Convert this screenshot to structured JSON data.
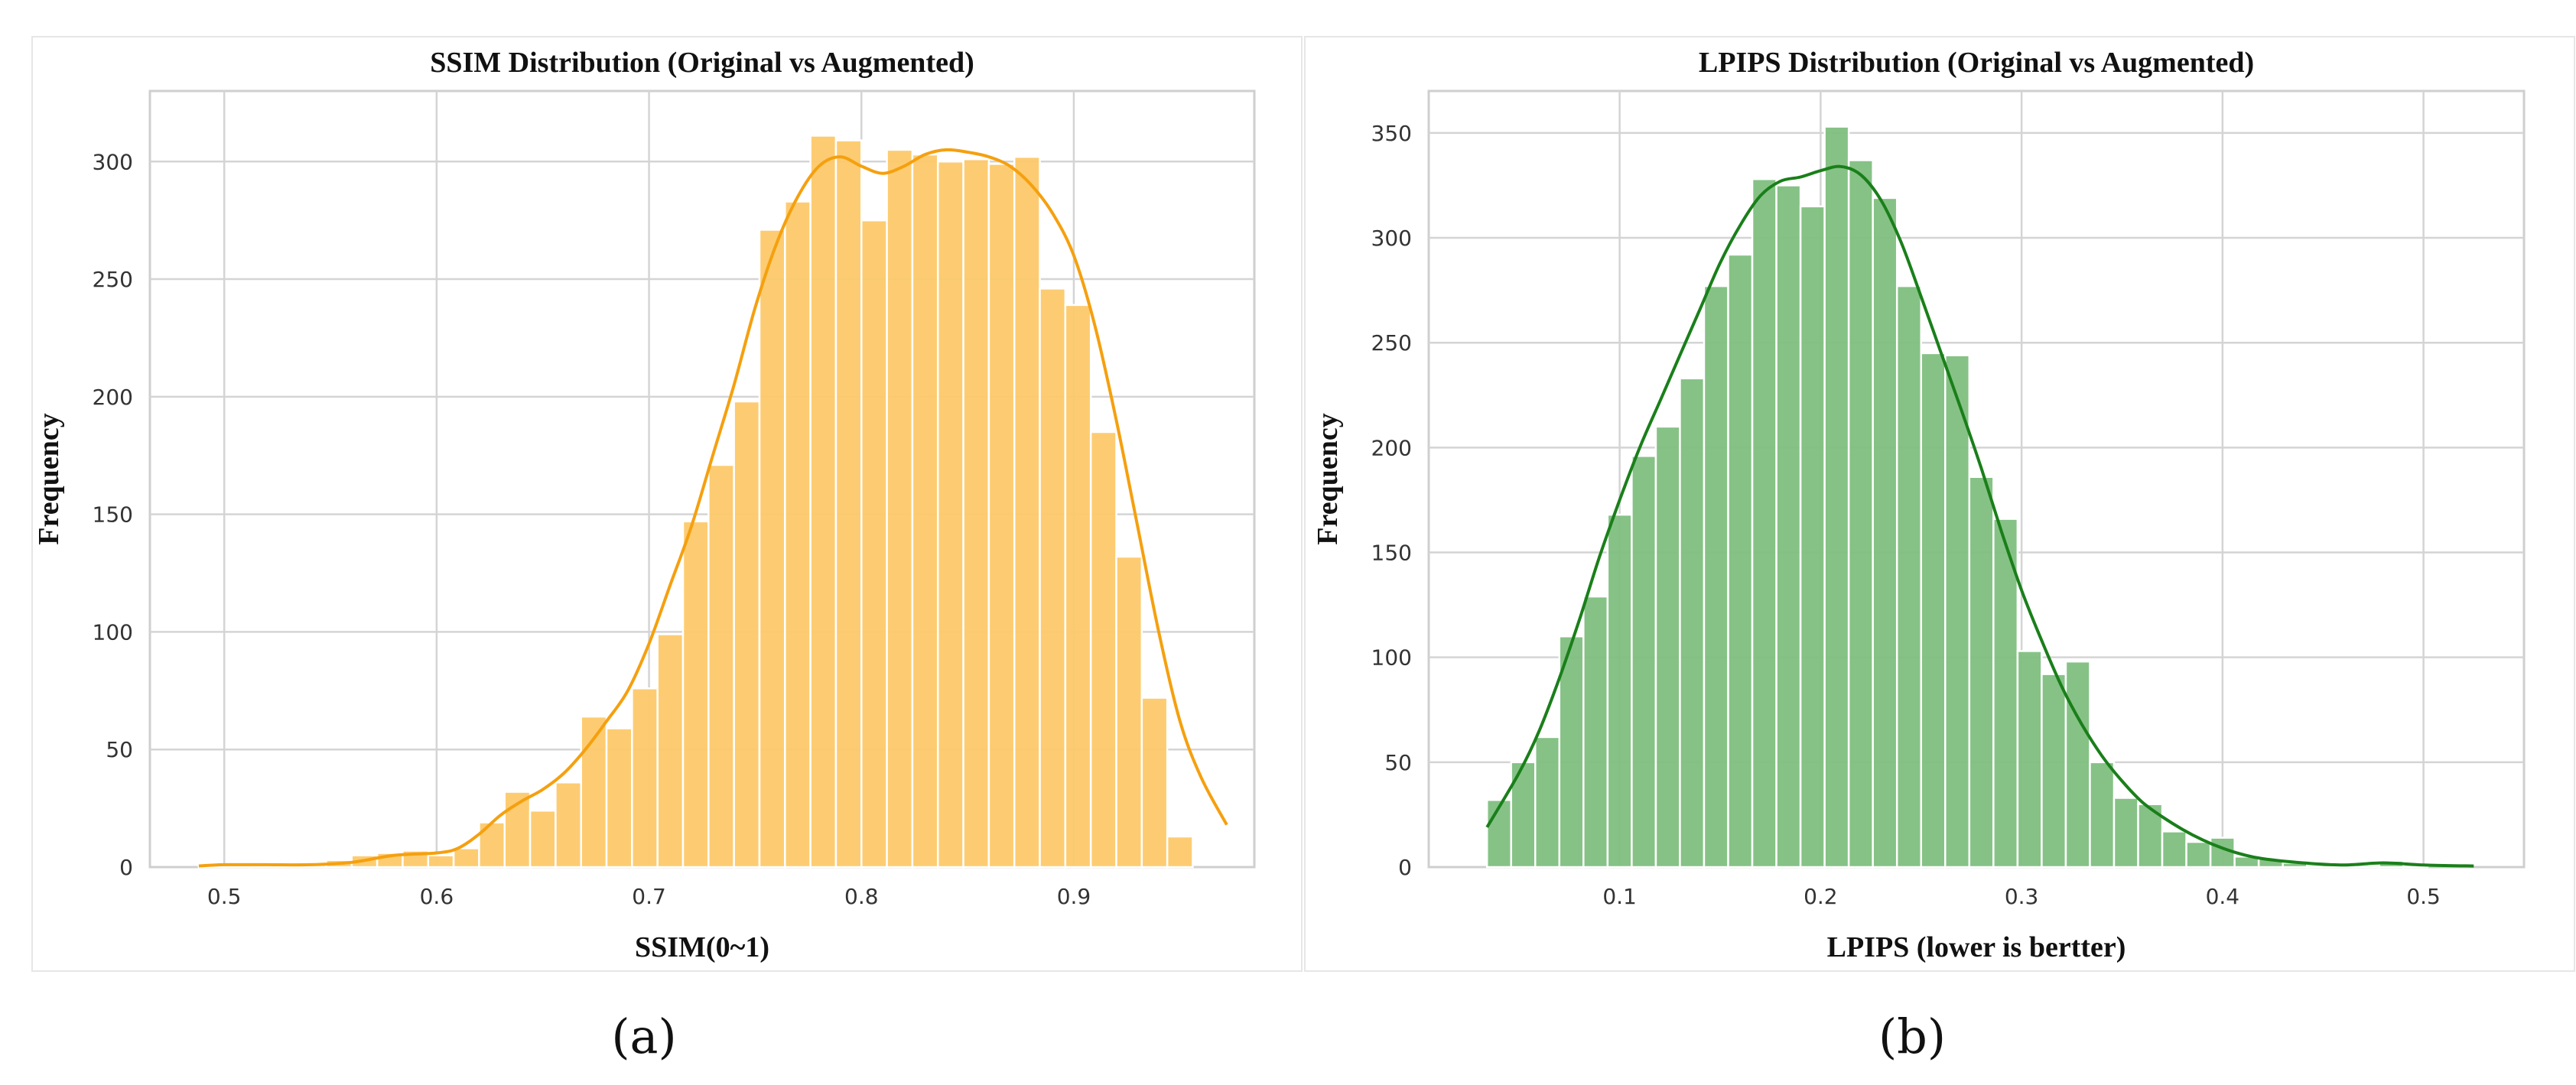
{
  "chart_data": [
    {
      "type": "bar",
      "panel_label": "(a)",
      "title": "SSIM Distribution (Original vs Augmented)",
      "xlabel": "SSIM(0~1)",
      "ylabel": "Frequency",
      "xlim": [
        0.465,
        0.985
      ],
      "ylim": [
        0,
        330
      ],
      "xticks": [
        0.5,
        0.6,
        0.7,
        0.8,
        0.9
      ],
      "yticks": [
        0,
        50,
        100,
        150,
        200,
        250,
        300
      ],
      "grid": true,
      "bar_color": "#fdc96a",
      "curve_color": "#f5a00f",
      "bins": [
        {
          "x0": 0.488,
          "x1": 0.5,
          "count": 0.5
        },
        {
          "x0": 0.5,
          "x1": 0.512,
          "count": 0.5
        },
        {
          "x0": 0.512,
          "x1": 0.524,
          "count": 0.5
        },
        {
          "x0": 0.524,
          "x1": 0.536,
          "count": 0.5
        },
        {
          "x0": 0.536,
          "x1": 0.548,
          "count": 1
        },
        {
          "x0": 0.548,
          "x1": 0.56,
          "count": 3
        },
        {
          "x0": 0.56,
          "x1": 0.572,
          "count": 5
        },
        {
          "x0": 0.572,
          "x1": 0.584,
          "count": 6
        },
        {
          "x0": 0.584,
          "x1": 0.596,
          "count": 7
        },
        {
          "x0": 0.596,
          "x1": 0.608,
          "count": 5
        },
        {
          "x0": 0.608,
          "x1": 0.62,
          "count": 8
        },
        {
          "x0": 0.62,
          "x1": 0.632,
          "count": 19
        },
        {
          "x0": 0.632,
          "x1": 0.644,
          "count": 32
        },
        {
          "x0": 0.644,
          "x1": 0.656,
          "count": 24
        },
        {
          "x0": 0.656,
          "x1": 0.668,
          "count": 36
        },
        {
          "x0": 0.668,
          "x1": 0.68,
          "count": 64
        },
        {
          "x0": 0.68,
          "x1": 0.692,
          "count": 59
        },
        {
          "x0": 0.692,
          "x1": 0.704,
          "count": 76
        },
        {
          "x0": 0.704,
          "x1": 0.716,
          "count": 99
        },
        {
          "x0": 0.716,
          "x1": 0.728,
          "count": 147
        },
        {
          "x0": 0.728,
          "x1": 0.74,
          "count": 171
        },
        {
          "x0": 0.74,
          "x1": 0.752,
          "count": 198
        },
        {
          "x0": 0.752,
          "x1": 0.764,
          "count": 271
        },
        {
          "x0": 0.764,
          "x1": 0.776,
          "count": 283
        },
        {
          "x0": 0.776,
          "x1": 0.788,
          "count": 311
        },
        {
          "x0": 0.788,
          "x1": 0.8,
          "count": 309
        },
        {
          "x0": 0.8,
          "x1": 0.812,
          "count": 275
        },
        {
          "x0": 0.812,
          "x1": 0.824,
          "count": 305
        },
        {
          "x0": 0.824,
          "x1": 0.836,
          "count": 303
        },
        {
          "x0": 0.836,
          "x1": 0.848,
          "count": 300
        },
        {
          "x0": 0.848,
          "x1": 0.86,
          "count": 301
        },
        {
          "x0": 0.86,
          "x1": 0.872,
          "count": 299
        },
        {
          "x0": 0.872,
          "x1": 0.884,
          "count": 302
        },
        {
          "x0": 0.884,
          "x1": 0.896,
          "count": 246
        },
        {
          "x0": 0.896,
          "x1": 0.908,
          "count": 239
        },
        {
          "x0": 0.908,
          "x1": 0.92,
          "count": 185
        },
        {
          "x0": 0.92,
          "x1": 0.932,
          "count": 132
        },
        {
          "x0": 0.932,
          "x1": 0.944,
          "count": 72
        },
        {
          "x0": 0.944,
          "x1": 0.956,
          "count": 13
        }
      ],
      "kde": {
        "x": [
          0.488,
          0.5,
          0.52,
          0.54,
          0.56,
          0.58,
          0.6,
          0.61,
          0.62,
          0.63,
          0.64,
          0.65,
          0.66,
          0.67,
          0.68,
          0.69,
          0.7,
          0.71,
          0.72,
          0.73,
          0.74,
          0.75,
          0.76,
          0.77,
          0.78,
          0.79,
          0.8,
          0.81,
          0.82,
          0.83,
          0.84,
          0.85,
          0.86,
          0.87,
          0.88,
          0.89,
          0.9,
          0.91,
          0.92,
          0.93,
          0.94,
          0.95,
          0.96,
          0.972
        ],
        "y": [
          0.5,
          1,
          1,
          1,
          2,
          5,
          6,
          8,
          14,
          22,
          28,
          33,
          40,
          50,
          62,
          75,
          95,
          120,
          145,
          175,
          205,
          238,
          265,
          285,
          298,
          302,
          298,
          295,
          298,
          303,
          305,
          304,
          302,
          298,
          290,
          278,
          260,
          230,
          190,
          145,
          100,
          62,
          38,
          18
        ]
      }
    },
    {
      "type": "bar",
      "panel_label": "(b)",
      "title": "LPIPS Distribution (Original vs Augmented)",
      "xlabel": "LPIPS (lower is bertter)",
      "ylabel": "Frequency",
      "xlim": [
        0.005,
        0.55
      ],
      "ylim": [
        0,
        370
      ],
      "xticks": [
        0.1,
        0.2,
        0.3,
        0.4,
        0.5
      ],
      "yticks": [
        0,
        50,
        100,
        150,
        200,
        250,
        300,
        350
      ],
      "grid": true,
      "bar_color": "#7fbf7f",
      "curve_color": "#1a7f1a",
      "bins": [
        {
          "x0": 0.034,
          "x1": 0.046,
          "count": 32
        },
        {
          "x0": 0.046,
          "x1": 0.058,
          "count": 50
        },
        {
          "x0": 0.058,
          "x1": 0.07,
          "count": 62
        },
        {
          "x0": 0.07,
          "x1": 0.082,
          "count": 110
        },
        {
          "x0": 0.082,
          "x1": 0.094,
          "count": 129
        },
        {
          "x0": 0.094,
          "x1": 0.106,
          "count": 168
        },
        {
          "x0": 0.106,
          "x1": 0.118,
          "count": 196
        },
        {
          "x0": 0.118,
          "x1": 0.13,
          "count": 210
        },
        {
          "x0": 0.13,
          "x1": 0.142,
          "count": 233
        },
        {
          "x0": 0.142,
          "x1": 0.154,
          "count": 277
        },
        {
          "x0": 0.154,
          "x1": 0.166,
          "count": 292
        },
        {
          "x0": 0.166,
          "x1": 0.178,
          "count": 328
        },
        {
          "x0": 0.178,
          "x1": 0.19,
          "count": 325
        },
        {
          "x0": 0.19,
          "x1": 0.202,
          "count": 315
        },
        {
          "x0": 0.202,
          "x1": 0.214,
          "count": 353
        },
        {
          "x0": 0.214,
          "x1": 0.226,
          "count": 337
        },
        {
          "x0": 0.226,
          "x1": 0.238,
          "count": 319
        },
        {
          "x0": 0.238,
          "x1": 0.25,
          "count": 277
        },
        {
          "x0": 0.25,
          "x1": 0.262,
          "count": 245
        },
        {
          "x0": 0.262,
          "x1": 0.274,
          "count": 244
        },
        {
          "x0": 0.274,
          "x1": 0.286,
          "count": 186
        },
        {
          "x0": 0.286,
          "x1": 0.298,
          "count": 166
        },
        {
          "x0": 0.298,
          "x1": 0.31,
          "count": 103
        },
        {
          "x0": 0.31,
          "x1": 0.322,
          "count": 92
        },
        {
          "x0": 0.322,
          "x1": 0.334,
          "count": 98
        },
        {
          "x0": 0.334,
          "x1": 0.346,
          "count": 50
        },
        {
          "x0": 0.346,
          "x1": 0.358,
          "count": 33
        },
        {
          "x0": 0.358,
          "x1": 0.37,
          "count": 30
        },
        {
          "x0": 0.37,
          "x1": 0.382,
          "count": 17
        },
        {
          "x0": 0.382,
          "x1": 0.394,
          "count": 12
        },
        {
          "x0": 0.394,
          "x1": 0.406,
          "count": 14
        },
        {
          "x0": 0.406,
          "x1": 0.418,
          "count": 5
        },
        {
          "x0": 0.418,
          "x1": 0.43,
          "count": 4
        },
        {
          "x0": 0.43,
          "x1": 0.442,
          "count": 2
        },
        {
          "x0": 0.442,
          "x1": 0.454,
          "count": 1
        },
        {
          "x0": 0.454,
          "x1": 0.466,
          "count": 1
        },
        {
          "x0": 0.466,
          "x1": 0.478,
          "count": 1
        },
        {
          "x0": 0.478,
          "x1": 0.49,
          "count": 3
        },
        {
          "x0": 0.49,
          "x1": 0.502,
          "count": 1
        }
      ],
      "kde": {
        "x": [
          0.034,
          0.05,
          0.06,
          0.07,
          0.08,
          0.09,
          0.1,
          0.11,
          0.12,
          0.13,
          0.14,
          0.15,
          0.16,
          0.17,
          0.18,
          0.19,
          0.2,
          0.21,
          0.22,
          0.23,
          0.24,
          0.25,
          0.26,
          0.27,
          0.28,
          0.29,
          0.3,
          0.31,
          0.32,
          0.33,
          0.34,
          0.35,
          0.36,
          0.37,
          0.38,
          0.39,
          0.4,
          0.41,
          0.42,
          0.44,
          0.46,
          0.48,
          0.5,
          0.525
        ],
        "y": [
          19,
          45,
          65,
          90,
          118,
          148,
          175,
          200,
          222,
          244,
          266,
          288,
          306,
          320,
          327,
          329,
          332,
          334,
          330,
          318,
          298,
          272,
          245,
          218,
          190,
          160,
          132,
          108,
          86,
          68,
          53,
          41,
          31,
          24,
          18,
          13,
          9,
          6,
          4,
          2,
          1,
          2,
          1,
          0.5
        ]
      }
    }
  ]
}
